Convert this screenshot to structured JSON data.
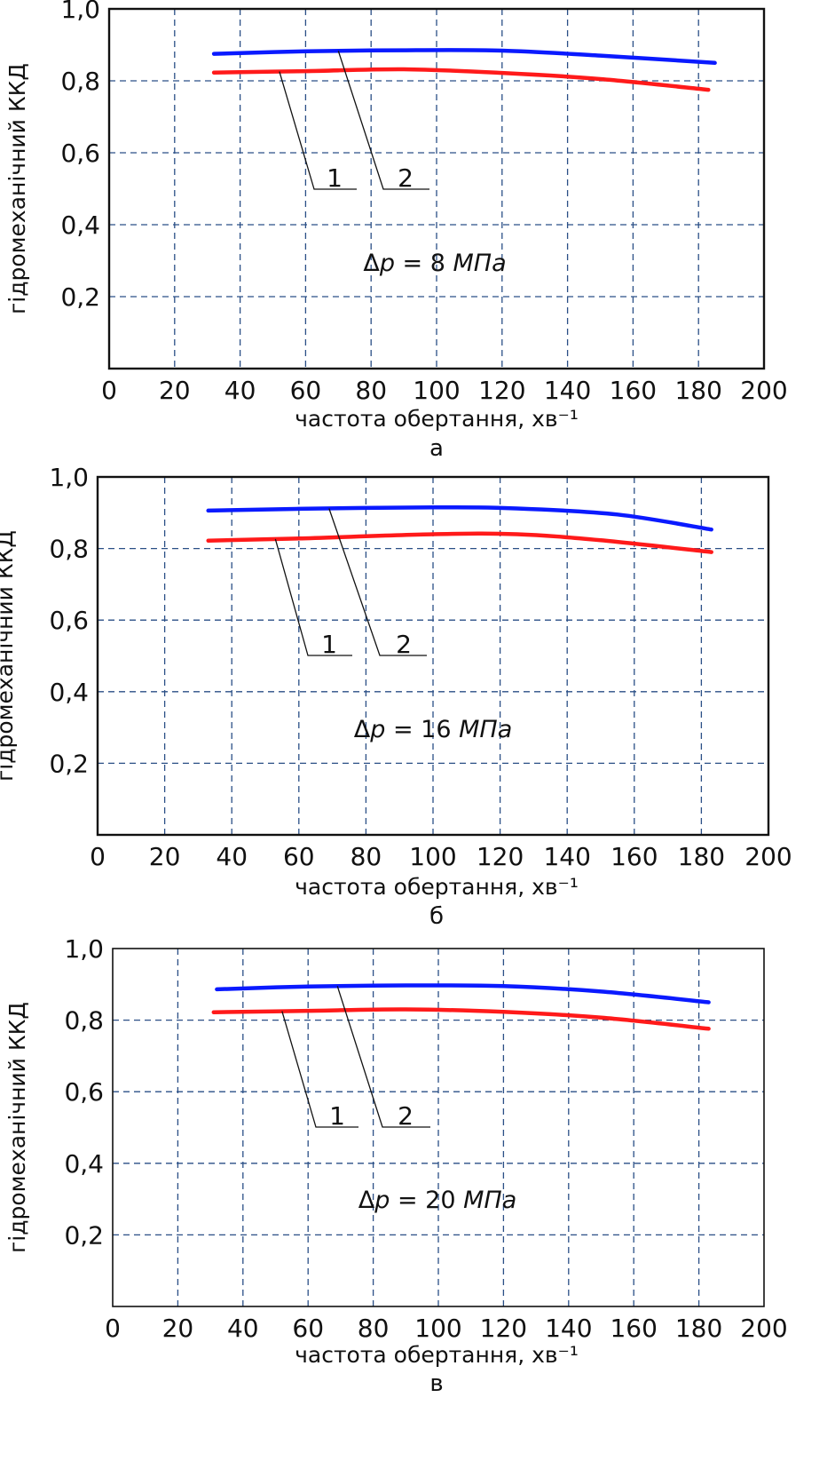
{
  "figure": {
    "panels": [
      {
        "letter": "а",
        "annotation_prefix": "Δ",
        "annotation_var": "p",
        "annotation_rest": " = 8 ",
        "annotation_unit": "МПа"
      },
      {
        "letter": "б",
        "annotation_prefix": "Δ",
        "annotation_var": "p",
        "annotation_rest": " = 16 ",
        "annotation_unit": "МПа"
      },
      {
        "letter": "в",
        "annotation_prefix": "Δ",
        "annotation_var": "p",
        "annotation_rest": " = 20 ",
        "annotation_unit": "МПа"
      }
    ]
  },
  "chart_data": [
    {
      "type": "line",
      "title": "",
      "annotation": "Δp = 8 МПа",
      "panel_letter": "а",
      "xlabel": "частота обертання, хв⁻¹",
      "ylabel": "гідромеханічний ККД",
      "xlim": [
        0,
        200
      ],
      "ylim": [
        0,
        1.0
      ],
      "x_ticks": [
        "0",
        "20",
        "40",
        "60",
        "80",
        "100",
        "120",
        "140",
        "160",
        "180",
        "200"
      ],
      "y_ticks": [
        "0,2",
        "0,4",
        "0,6",
        "0,8",
        "1,0"
      ],
      "grid": true,
      "curve_labels": [
        "1",
        "2"
      ],
      "series": [
        {
          "name": "1",
          "color": "#ff1a1a",
          "x": [
            32,
            60,
            90,
            120,
            150,
            183
          ],
          "y": [
            0.823,
            0.827,
            0.832,
            0.822,
            0.805,
            0.775
          ]
        },
        {
          "name": "2",
          "color": "#0a1aff",
          "x": [
            32,
            60,
            90,
            120,
            150,
            185
          ],
          "y": [
            0.875,
            0.882,
            0.885,
            0.884,
            0.87,
            0.85
          ]
        }
      ]
    },
    {
      "type": "line",
      "title": "",
      "annotation": "Δp = 16 МПа",
      "panel_letter": "б",
      "xlabel": "частота обертання, хв⁻¹",
      "ylabel": "гідромеханічний ККД",
      "xlim": [
        0,
        200
      ],
      "ylim": [
        0,
        1.0
      ],
      "x_ticks": [
        "0",
        "20",
        "40",
        "60",
        "80",
        "100",
        "120",
        "140",
        "160",
        "180",
        "200"
      ],
      "y_ticks": [
        "0,2",
        "0,4",
        "0,6",
        "0,8",
        "1,0"
      ],
      "grid": true,
      "curve_labels": [
        "1",
        "2"
      ],
      "series": [
        {
          "name": "1",
          "color": "#ff1a1a",
          "x": [
            33,
            60,
            100,
            125,
            150,
            183
          ],
          "y": [
            0.822,
            0.828,
            0.84,
            0.84,
            0.823,
            0.79
          ]
        },
        {
          "name": "2",
          "color": "#0a1aff",
          "x": [
            33,
            60,
            100,
            125,
            155,
            183
          ],
          "y": [
            0.906,
            0.911,
            0.915,
            0.912,
            0.895,
            0.853
          ]
        }
      ]
    },
    {
      "type": "line",
      "title": "",
      "annotation": "Δp = 20 МПа",
      "panel_letter": "в",
      "xlabel": "частота обертання, хв⁻¹",
      "ylabel": "гідромеханічний ККД",
      "xlim": [
        0,
        200
      ],
      "ylim": [
        0,
        1.0
      ],
      "x_ticks": [
        "0",
        "20",
        "40",
        "60",
        "80",
        "100",
        "120",
        "140",
        "160",
        "180",
        "200"
      ],
      "y_ticks": [
        "0,2",
        "0,4",
        "0,6",
        "0,8",
        "1,0"
      ],
      "grid": true,
      "curve_labels": [
        "1",
        "2"
      ],
      "series": [
        {
          "name": "1",
          "color": "#ff1a1a",
          "x": [
            31,
            60,
            90,
            120,
            150,
            183
          ],
          "y": [
            0.822,
            0.826,
            0.83,
            0.823,
            0.807,
            0.776
          ]
        },
        {
          "name": "2",
          "color": "#0a1aff",
          "x": [
            32,
            60,
            90,
            120,
            150,
            183
          ],
          "y": [
            0.886,
            0.894,
            0.897,
            0.895,
            0.88,
            0.85
          ]
        }
      ]
    }
  ]
}
